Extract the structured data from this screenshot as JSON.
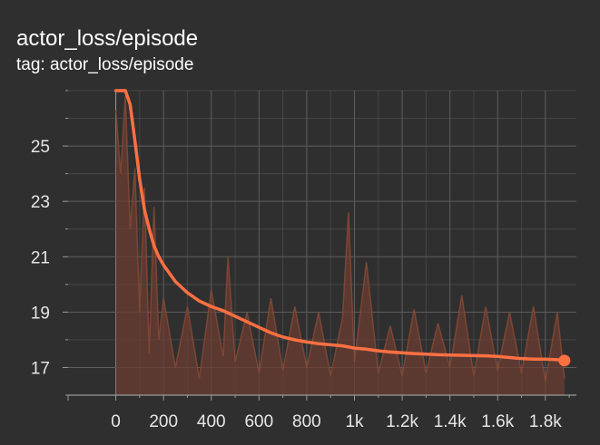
{
  "card": {
    "title": "actor_loss/episode",
    "subtitle": "tag: actor_loss/episode"
  },
  "colors": {
    "background": "#2f2f2f",
    "grid": "#5e5e5e",
    "axis": "#9a9a9a",
    "smoothed": "#ff7043",
    "raw": "#6b3e31"
  },
  "chart_data": {
    "type": "line",
    "title": "actor_loss/episode",
    "xlabel": "",
    "ylabel": "",
    "xlim": [
      -200,
      1930
    ],
    "ylim": [
      16.0,
      27.0
    ],
    "x_ticks": [
      0,
      200,
      400,
      600,
      800,
      1000,
      1200,
      1400,
      1600,
      1800
    ],
    "x_tick_labels": [
      "0",
      "200",
      "400",
      "600",
      "800",
      "1k",
      "1.2k",
      "1.4k",
      "1.6k",
      "1.8k"
    ],
    "y_ticks": [
      17,
      19,
      21,
      23,
      25
    ],
    "y_tick_labels": [
      "17",
      "19",
      "21",
      "23",
      "25"
    ],
    "grid": true,
    "series": [
      {
        "role": "smoothed",
        "x": [
          0,
          40,
          60,
          80,
          100,
          120,
          140,
          160,
          180,
          200,
          250,
          300,
          350,
          400,
          450,
          500,
          550,
          600,
          650,
          700,
          750,
          800,
          850,
          900,
          950,
          1000,
          1050,
          1100,
          1150,
          1200,
          1250,
          1300,
          1350,
          1400,
          1450,
          1500,
          1550,
          1600,
          1650,
          1700,
          1750,
          1800,
          1850,
          1880
        ],
        "y": [
          27.0,
          27.0,
          26.5,
          25.2,
          23.8,
          22.7,
          22.0,
          21.4,
          21.0,
          20.7,
          20.1,
          19.7,
          19.4,
          19.2,
          19.05,
          18.85,
          18.65,
          18.45,
          18.25,
          18.1,
          18.0,
          17.92,
          17.86,
          17.82,
          17.78,
          17.7,
          17.66,
          17.6,
          17.56,
          17.53,
          17.5,
          17.48,
          17.46,
          17.45,
          17.44,
          17.43,
          17.42,
          17.4,
          17.36,
          17.32,
          17.3,
          17.3,
          17.28,
          17.25
        ]
      },
      {
        "role": "raw",
        "x": [
          0,
          20,
          40,
          60,
          80,
          100,
          120,
          140,
          160,
          180,
          200,
          250,
          300,
          350,
          400,
          450,
          470,
          500,
          550,
          600,
          650,
          700,
          750,
          800,
          850,
          900,
          950,
          975,
          1000,
          1050,
          1100,
          1150,
          1200,
          1250,
          1300,
          1350,
          1400,
          1450,
          1500,
          1550,
          1600,
          1650,
          1700,
          1750,
          1800,
          1850,
          1880
        ],
        "y": [
          26.3,
          24.0,
          26.8,
          22.0,
          24.2,
          19.0,
          23.5,
          17.5,
          22.8,
          18.0,
          19.5,
          17.0,
          19.2,
          16.6,
          19.8,
          17.4,
          21.0,
          17.2,
          19.0,
          16.8,
          19.5,
          16.9,
          19.2,
          17.0,
          19.0,
          16.7,
          18.8,
          22.6,
          17.2,
          20.8,
          16.8,
          18.5,
          16.7,
          19.1,
          16.8,
          18.6,
          17.0,
          19.6,
          16.7,
          19.2,
          16.9,
          19.0,
          16.8,
          19.2,
          16.5,
          19.0,
          16.6
        ]
      }
    ]
  }
}
